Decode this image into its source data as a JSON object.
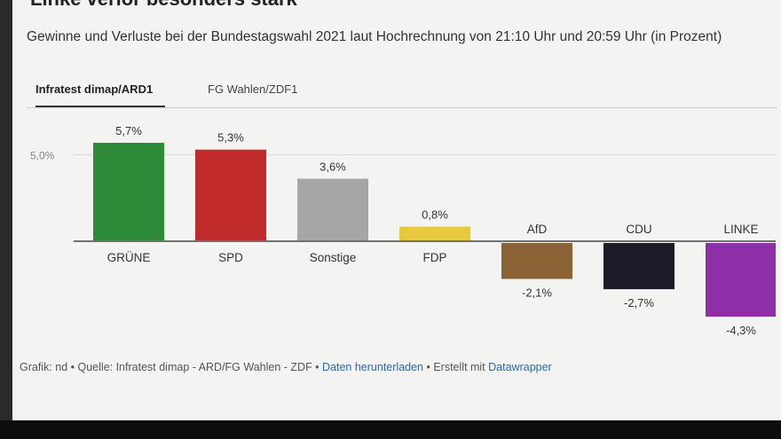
{
  "header": {
    "cut_title": "Linke verlor besonders stark",
    "subtitle": "Gewinne und Verluste bei der Bundestagswahl 2021 laut Hochrechnung von 21:10 Uhr und 20:59 Uhr (in Prozent)"
  },
  "tabs": [
    {
      "label": "Infratest dimap/ARD1",
      "active": true
    },
    {
      "label": "FG Wahlen/ZDF1",
      "active": false
    }
  ],
  "chart_data": {
    "type": "bar",
    "categories": [
      "GRÜNE",
      "SPD",
      "Sonstige",
      "FDP",
      "AfD",
      "CDU",
      "LINKE"
    ],
    "values": [
      5.7,
      5.3,
      3.6,
      0.8,
      -2.1,
      -2.7,
      -4.3
    ],
    "value_labels": [
      "5,7%",
      "5,3%",
      "3,6%",
      "0,8%",
      "-2,1%",
      "-2,7%",
      "-4,3%"
    ],
    "colors": [
      "#2e8b3a",
      "#c12a2a",
      "#a6a6a6",
      "#e8c93c",
      "#8b6234",
      "#1c1c28",
      "#8e2fa8"
    ],
    "y_tick": {
      "value": 5.0,
      "label": "5,0%"
    },
    "ylim": [
      -4.5,
      6.0
    ]
  },
  "footer": {
    "prefix": "Grafik: nd • Quelle: Infratest dimap - ARD/FG Wahlen - ZDF • ",
    "download": "Daten herunterladen",
    "middle": " • Erstellt mit ",
    "tool": "Datawrapper"
  }
}
